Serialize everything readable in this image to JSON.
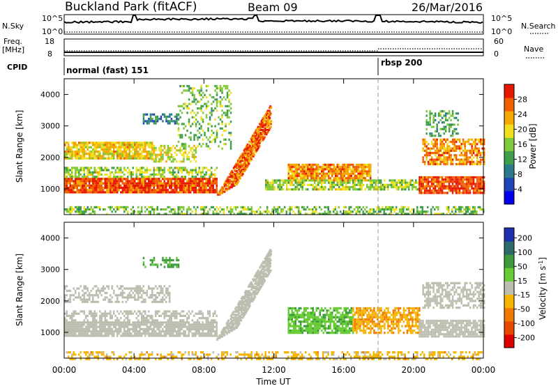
{
  "header": {
    "site": "Buckland Park (fitACF)",
    "beam": "Beam 09",
    "date": "26/Mar/2016"
  },
  "noise_panel": {
    "left_label": "N.Sky",
    "right_label": "N.Search",
    "left_ticks": [
      "10^5",
      "10^0"
    ],
    "right_ticks": [
      "10^5",
      "10^0"
    ]
  },
  "freq_panel": {
    "left_label_1": "Freq.",
    "left_label_2": "[MHz]",
    "left_ticks": [
      "18",
      "8"
    ],
    "right_label": "Nave",
    "right_ticks": [
      "60",
      "0"
    ]
  },
  "cpid_panel": {
    "label": "CPID",
    "modes": [
      {
        "name": "normal (fast) 151",
        "start_hour": 0
      },
      {
        "name": "rbsp 200",
        "start_hour": 18
      }
    ]
  },
  "chart_data": [
    {
      "type": "heatmap",
      "parameter": "Power",
      "ylabel": "Slant Range [km]",
      "ylim": [
        180,
        4500
      ],
      "yticks": [
        1000,
        2000,
        3000,
        4000
      ],
      "xlim_hours": [
        0,
        24
      ],
      "xtick_labels": [
        "00:00",
        "04:00",
        "08:00",
        "12:00",
        "16:00",
        "20:00",
        "00:00"
      ],
      "colorbar": {
        "label": "Power [dB]",
        "ticks": [
          "4",
          "8",
          "12",
          "16",
          "20",
          "24",
          "28"
        ],
        "range": [
          0,
          30
        ],
        "colors": [
          "#0000ee",
          "#1e44b8",
          "#2b7a8c",
          "#3f9f4a",
          "#7fc93a",
          "#f0e020",
          "#f5a800",
          "#f06000",
          "#e81800"
        ]
      },
      "bands": [
        {
          "t0": 0.0,
          "t1": 8.7,
          "r0": 900,
          "r1": 1350,
          "value": 28,
          "density": 0.95
        },
        {
          "t0": 0.0,
          "t1": 8.7,
          "r0": 1350,
          "r1": 1700,
          "value": 16,
          "density": 0.6
        },
        {
          "t0": 0.0,
          "t1": 5.0,
          "r0": 2000,
          "r1": 2500,
          "value": 20,
          "density": 0.85
        },
        {
          "t0": 5.0,
          "t1": 7.5,
          "r0": 1900,
          "r1": 2400,
          "value": 18,
          "density": 0.55
        },
        {
          "t0": 4.5,
          "t1": 6.5,
          "r0": 3100,
          "r1": 3400,
          "value": 8,
          "density": 0.6
        },
        {
          "t0": 6.5,
          "t1": 9.5,
          "r0": 2300,
          "r1": 4300,
          "value": 14,
          "density": 0.3
        },
        {
          "t0": 12.8,
          "t1": 17.5,
          "r0": 1300,
          "r1": 1800,
          "value": 24,
          "density": 0.9
        },
        {
          "t0": 11.5,
          "t1": 20.3,
          "r0": 950,
          "r1": 1300,
          "value": 16,
          "density": 0.7
        },
        {
          "t0": 20.3,
          "t1": 24.0,
          "r0": 900,
          "r1": 1400,
          "value": 28,
          "density": 0.9
        },
        {
          "t0": 20.5,
          "t1": 24.0,
          "r0": 1800,
          "r1": 2600,
          "value": 24,
          "density": 0.7
        },
        {
          "t0": 20.7,
          "t1": 22.5,
          "r0": 2700,
          "r1": 3500,
          "value": 12,
          "density": 0.45
        },
        {
          "t0": 0.0,
          "t1": 24.0,
          "r0": 180,
          "r1": 450,
          "value": 14,
          "density": 0.5
        }
      ],
      "slanted_echoes": {
        "t0": 8.7,
        "t1": 11.8,
        "r_start": 800,
        "r_end": 3700,
        "value": 26
      }
    },
    {
      "type": "heatmap",
      "parameter": "Velocity",
      "ylabel": "Slant Range [km]",
      "ylim": [
        180,
        4500
      ],
      "yticks": [
        1000,
        2000,
        3000,
        4000
      ],
      "xlim_hours": [
        0,
        24
      ],
      "xtick_labels": [
        "00:00",
        "04:00",
        "08:00",
        "12:00",
        "16:00",
        "20:00",
        "00:00"
      ],
      "xlabel": "Time UT",
      "colorbar": {
        "label": "Velocity [m s^-1]",
        "ticks": [
          "200",
          "100",
          "50",
          "15",
          "-15",
          "-50",
          "-100",
          "-200"
        ],
        "colors": [
          "#1c2fae",
          "#2d6a6a",
          "#3d9a3d",
          "#66cc33",
          "#bdbdb0",
          "#f5b400",
          "#f07a00",
          "#e84800",
          "#dd0000"
        ]
      },
      "bands": [
        {
          "t0": 0.0,
          "t1": 8.7,
          "r0": 900,
          "r1": 1350,
          "value": 0,
          "density": 0.9
        },
        {
          "t0": 0.0,
          "t1": 8.7,
          "r0": 1400,
          "r1": 1700,
          "value": 0,
          "density": 0.5
        },
        {
          "t0": 0.0,
          "t1": 6.0,
          "r0": 2000,
          "r1": 2500,
          "value": 0,
          "density": 0.5
        },
        {
          "t0": 4.5,
          "t1": 6.5,
          "r0": 3100,
          "r1": 3400,
          "value": 60,
          "density": 0.4
        },
        {
          "t0": 12.8,
          "t1": 16.5,
          "r0": 1000,
          "r1": 1800,
          "value": 40,
          "density": 0.75
        },
        {
          "t0": 16.5,
          "t1": 20.3,
          "r0": 950,
          "r1": 1800,
          "value": -40,
          "density": 0.7
        },
        {
          "t0": 20.3,
          "t1": 24.0,
          "r0": 900,
          "r1": 1400,
          "value": 0,
          "density": 0.85
        },
        {
          "t0": 20.5,
          "t1": 24.0,
          "r0": 1800,
          "r1": 2600,
          "value": 0,
          "density": 0.55
        },
        {
          "t0": 0.0,
          "t1": 24.0,
          "r0": 180,
          "r1": 400,
          "value": -30,
          "density": 0.45
        }
      ],
      "slanted_echoes": {
        "t0": 8.7,
        "t1": 11.8,
        "r_start": 800,
        "r_end": 3700,
        "value": 0
      }
    }
  ]
}
